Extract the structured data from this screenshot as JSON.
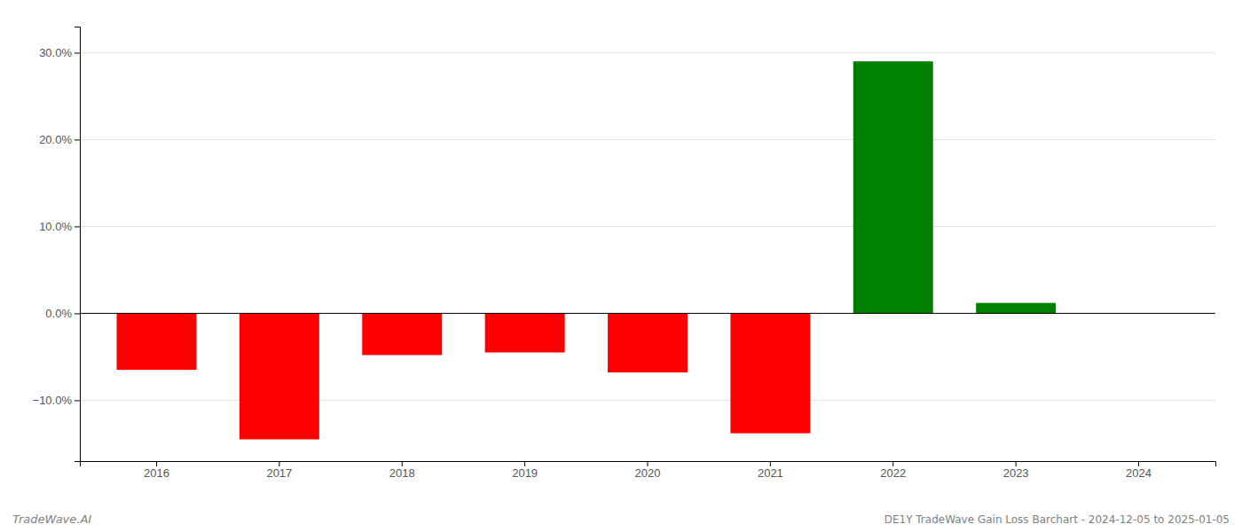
{
  "chart_data": {
    "type": "bar",
    "title": "DE1Y TradeWave Gain Loss Barchart - 2024-12-05 to 2025-01-05",
    "annotations": [
      "TradeWave.AI"
    ],
    "categories": [
      "2016",
      "2017",
      "2018",
      "2019",
      "2020",
      "2021",
      "2022",
      "2023",
      "2024"
    ],
    "values": [
      -6.5,
      -14.5,
      -4.8,
      -4.5,
      -6.8,
      -13.8,
      29.0,
      1.2,
      0.0
    ],
    "colors": [
      "#ff0000",
      "#ff0000",
      "#ff0000",
      "#ff0000",
      "#ff0000",
      "#ff0000",
      "#008000",
      "#008000",
      "#ffffff"
    ],
    "ylim": [
      -17,
      33
    ],
    "yticks": [
      {
        "value": -10.0,
        "label": "−10.0%"
      },
      {
        "value": 0.0,
        "label": "0.0%"
      },
      {
        "value": 10.0,
        "label": "10.0%"
      },
      {
        "value": 20.0,
        "label": "20.0%"
      },
      {
        "value": 30.0,
        "label": "30.0%"
      }
    ],
    "grid": true
  }
}
